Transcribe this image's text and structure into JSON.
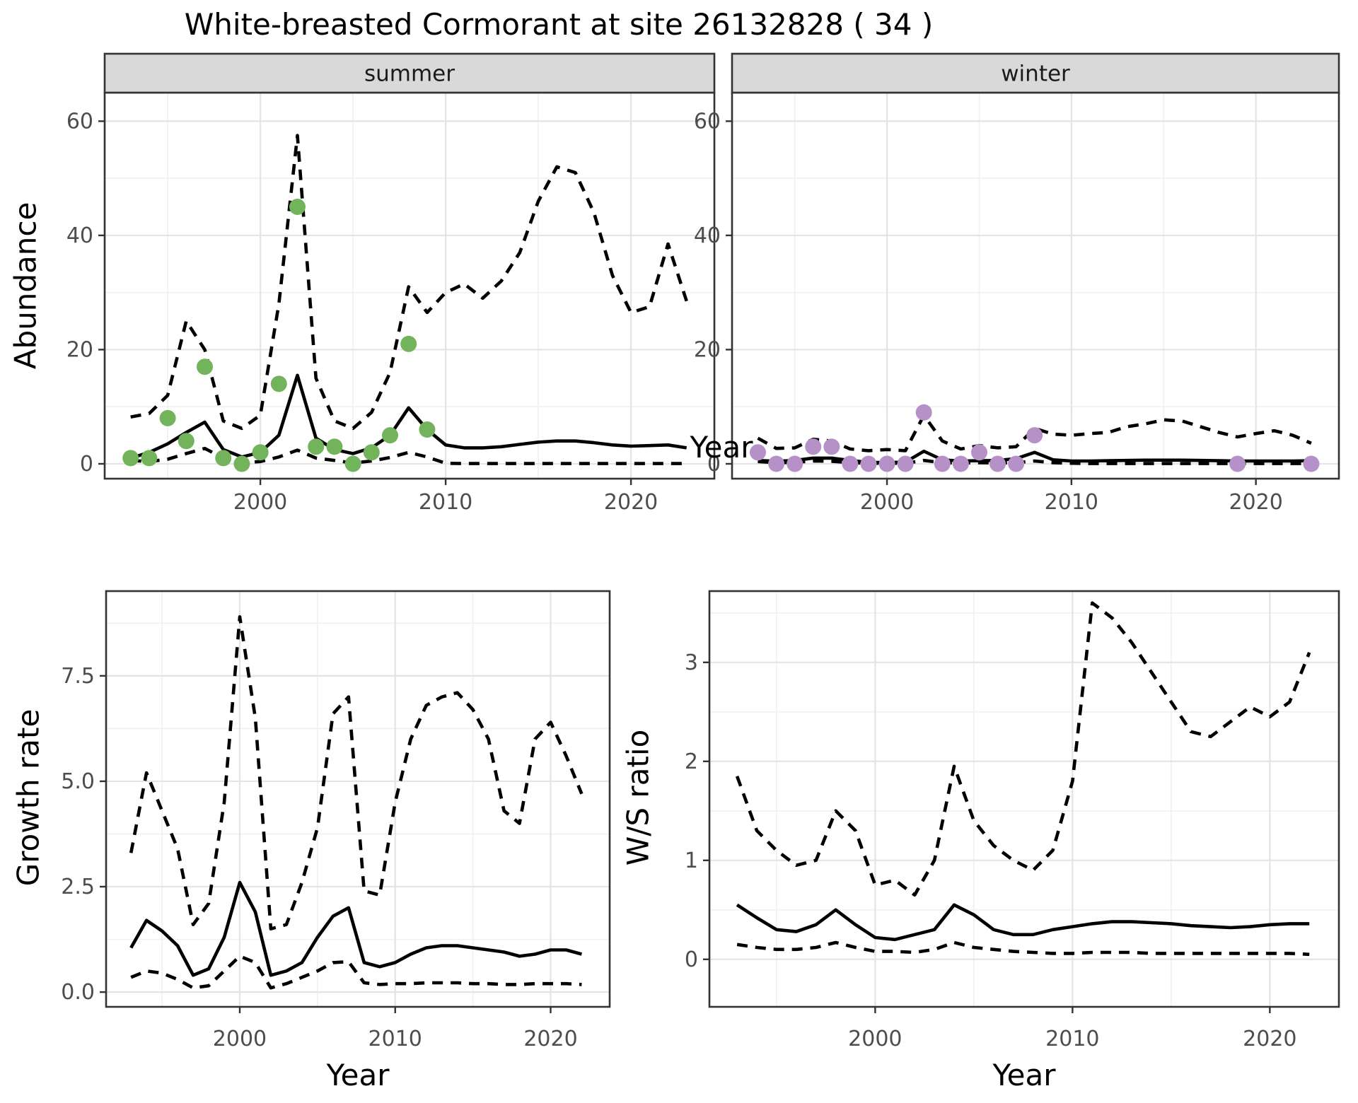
{
  "title": "White-breasted Cormorant at site 26132828 ( 34 )",
  "labels": {
    "year": "Year",
    "abundance": "Abundance",
    "growth_rate": "Growth rate",
    "ws_ratio": "W/S ratio"
  },
  "colors": {
    "summer_point": "#72B35C",
    "winter_point": "#B591C7",
    "line": "#000000",
    "strip_bg": "#D9D9D9",
    "strip_border": "#333333",
    "panel_border": "#333333",
    "grid_major": "#E4E4E4",
    "grid_minor": "#F1F1F1",
    "tick_label": "#4D4D4D",
    "tick_mark": "#333333",
    "panel_bg": "#FFFFFF"
  },
  "chart_data": [
    {
      "id": "summer",
      "type": "line",
      "facet_label": "summer",
      "xlabel": "Year",
      "ylabel": "Abundance",
      "x_ticks": [
        2000,
        2010,
        2020
      ],
      "x_minor": [
        1995,
        2005,
        2015
      ],
      "y_ticks": [
        0,
        20,
        40,
        60
      ],
      "y_tick_labels": [
        "0",
        "20",
        "40",
        "60"
      ],
      "y_minor": [
        10,
        30,
        50
      ],
      "xlim": [
        1991.6,
        2024.5
      ],
      "ylim": [
        -2.6,
        65
      ],
      "legend": "none",
      "grid": true,
      "years": [
        1993,
        1994,
        1995,
        1996,
        1997,
        1998,
        1999,
        2000,
        2001,
        2002,
        2003,
        2004,
        2005,
        2006,
        2007,
        2008,
        2009,
        2010,
        2011,
        2012,
        2013,
        2014,
        2015,
        2016,
        2017,
        2018,
        2019,
        2020,
        2021,
        2022,
        2023
      ],
      "fit": [
        1.0,
        2.0,
        3.5,
        5.5,
        7.3,
        2.5,
        1.2,
        2.0,
        5.0,
        15.5,
        4.5,
        2.5,
        1.8,
        2.8,
        5.0,
        9.8,
        6.0,
        3.3,
        2.8,
        2.8,
        3.0,
        3.4,
        3.8,
        4.0,
        4.0,
        3.7,
        3.3,
        3.1,
        3.2,
        3.3,
        2.8
      ],
      "upper_ci": [
        8.2,
        8.8,
        12,
        25,
        20,
        7.5,
        6.2,
        8.5,
        28,
        57.5,
        15,
        7.5,
        6.2,
        9,
        16,
        31,
        26.5,
        30,
        31.5,
        29,
        32,
        37,
        46,
        52,
        51,
        44,
        33,
        26.5,
        27.5,
        38.5,
        28.5
      ],
      "lower_ci": [
        0.6,
        0.4,
        0.8,
        1.8,
        2.7,
        1.0,
        0.2,
        0.4,
        1.2,
        2.4,
        1.0,
        0.6,
        0.15,
        0.5,
        1.1,
        2.0,
        1.2,
        0.1,
        0.05,
        0.05,
        0.05,
        0.05,
        0.05,
        0.05,
        0.05,
        0.05,
        0.05,
        0.05,
        0.05,
        0.05,
        0.05
      ],
      "observed": {
        "color": "summer_point",
        "years": [
          1993,
          1994,
          1995,
          1996,
          1997,
          1998,
          1999,
          2000,
          2001,
          2002,
          2003,
          2004,
          2005,
          2006,
          2007,
          2008,
          2009
        ],
        "values": [
          1,
          1,
          8,
          4,
          17,
          1,
          0,
          2,
          14,
          45,
          3,
          3,
          0,
          2,
          5,
          21,
          6
        ]
      }
    },
    {
      "id": "winter",
      "type": "line",
      "facet_label": "winter",
      "xlabel": "Year",
      "ylabel": "Abundance",
      "x_ticks": [
        2000,
        2010,
        2020
      ],
      "x_minor": [
        1995,
        2005,
        2015
      ],
      "y_ticks": [
        0,
        20,
        40,
        60
      ],
      "y_tick_labels": [
        "0",
        "20",
        "40",
        "60"
      ],
      "y_minor": [
        10,
        30,
        50
      ],
      "xlim": [
        1991.6,
        2024.5
      ],
      "ylim": [
        -2.6,
        65
      ],
      "legend": "none",
      "grid": true,
      "years": [
        1993,
        1994,
        1995,
        1996,
        1997,
        1998,
        1999,
        2000,
        2001,
        2002,
        2003,
        2004,
        2005,
        2006,
        2007,
        2008,
        2009,
        2010,
        2011,
        2012,
        2013,
        2014,
        2015,
        2016,
        2017,
        2018,
        2019,
        2020,
        2021,
        2022,
        2023
      ],
      "fit": [
        0.6,
        0.45,
        0.6,
        1.0,
        1.0,
        0.6,
        0.25,
        0.25,
        0.3,
        2.2,
        0.7,
        0.5,
        0.55,
        0.6,
        0.9,
        2.0,
        0.7,
        0.5,
        0.5,
        0.55,
        0.6,
        0.65,
        0.65,
        0.65,
        0.6,
        0.55,
        0.5,
        0.5,
        0.5,
        0.5,
        0.55
      ],
      "upper_ci": [
        4.5,
        2.7,
        2.8,
        4.3,
        4.0,
        2.6,
        2.3,
        2.5,
        2.3,
        8.5,
        4.0,
        2.6,
        3.2,
        2.8,
        3.0,
        6.2,
        5.2,
        5.0,
        5.3,
        5.5,
        6.5,
        7.0,
        7.7,
        7.5,
        6.5,
        5.5,
        4.7,
        5.3,
        5.8,
        5.0,
        3.6
      ],
      "lower_ci": [
        0.4,
        0.2,
        0.25,
        0.5,
        0.45,
        0.2,
        0.1,
        0.1,
        0.1,
        0.6,
        0.2,
        0.15,
        0.2,
        0.15,
        0.2,
        0.5,
        0.2,
        0.1,
        0.05,
        0.05,
        0.05,
        0.05,
        0.05,
        0.05,
        0.05,
        0.05,
        0.05,
        0.05,
        0.05,
        0.05,
        0.05
      ],
      "observed": {
        "color": "winter_point",
        "years": [
          1993,
          1994,
          1995,
          1996,
          1997,
          1998,
          1999,
          2000,
          2001,
          2002,
          2003,
          2004,
          2005,
          2006,
          2007,
          2008,
          2019,
          2023
        ],
        "values": [
          2,
          0,
          0,
          3,
          3,
          0,
          0,
          0,
          0,
          9,
          0,
          0,
          2,
          0,
          0,
          5,
          0,
          0
        ]
      }
    },
    {
      "id": "growth",
      "type": "line",
      "facet_label": null,
      "xlabel": "Year",
      "ylabel": "Growth rate",
      "x_ticks": [
        2000,
        2010,
        2020
      ],
      "x_minor": [
        1995,
        2005,
        2015
      ],
      "y_ticks": [
        0,
        2.5,
        5,
        7.5
      ],
      "y_tick_labels": [
        "0.0",
        "2.5",
        "5.0",
        "7.5"
      ],
      "y_minor": [
        1.25,
        3.75,
        6.25,
        8.75
      ],
      "xlim": [
        1991.4,
        2023.8
      ],
      "ylim": [
        -0.35,
        9.51
      ],
      "legend": "none",
      "grid": true,
      "years": [
        1993,
        1994,
        1995,
        1996,
        1997,
        1998,
        1999,
        2000,
        2001,
        2002,
        2003,
        2004,
        2005,
        2006,
        2007,
        2008,
        2009,
        2010,
        2011,
        2012,
        2013,
        2014,
        2015,
        2016,
        2017,
        2018,
        2019,
        2020,
        2021,
        2022
      ],
      "fit": [
        1.05,
        1.7,
        1.45,
        1.1,
        0.4,
        0.55,
        1.3,
        2.6,
        1.9,
        0.4,
        0.5,
        0.7,
        1.3,
        1.8,
        2.0,
        0.7,
        0.6,
        0.7,
        0.9,
        1.05,
        1.1,
        1.1,
        1.05,
        1.0,
        0.95,
        0.85,
        0.9,
        1.0,
        1.0,
        0.9
      ],
      "upper_ci": [
        3.3,
        5.2,
        4.3,
        3.4,
        1.6,
        2.1,
        4.5,
        8.9,
        6.5,
        1.5,
        1.6,
        2.6,
        3.9,
        6.6,
        7.0,
        2.4,
        2.3,
        4.5,
        6.0,
        6.8,
        7.0,
        7.1,
        6.7,
        6.0,
        4.3,
        4.0,
        6.0,
        6.4,
        5.6,
        4.7
      ],
      "lower_ci": [
        0.35,
        0.5,
        0.45,
        0.3,
        0.1,
        0.15,
        0.5,
        0.85,
        0.7,
        0.1,
        0.2,
        0.35,
        0.5,
        0.7,
        0.72,
        0.22,
        0.18,
        0.2,
        0.2,
        0.22,
        0.22,
        0.22,
        0.2,
        0.2,
        0.18,
        0.18,
        0.2,
        0.2,
        0.2,
        0.18
      ]
    },
    {
      "id": "ws",
      "type": "line",
      "facet_label": null,
      "xlabel": "Year",
      "ylabel": "W/S ratio",
      "x_ticks": [
        2000,
        2010,
        2020
      ],
      "x_minor": [
        1995,
        2005,
        2015
      ],
      "y_ticks": [
        0,
        1,
        2,
        3
      ],
      "y_tick_labels": [
        "0",
        "1",
        "2",
        "3"
      ],
      "y_minor": [
        0.5,
        1.5,
        2.5,
        3.5
      ],
      "xlim": [
        1991.6,
        2023.5
      ],
      "ylim": [
        -0.48,
        3.72
      ],
      "legend": "none",
      "grid": true,
      "years": [
        1993,
        1994,
        1995,
        1996,
        1997,
        1998,
        1999,
        2000,
        2001,
        2002,
        2003,
        2004,
        2005,
        2006,
        2007,
        2008,
        2009,
        2010,
        2011,
        2012,
        2013,
        2014,
        2015,
        2016,
        2017,
        2018,
        2019,
        2020,
        2021,
        2022
      ],
      "fit": [
        0.55,
        0.42,
        0.3,
        0.28,
        0.35,
        0.5,
        0.35,
        0.22,
        0.2,
        0.25,
        0.3,
        0.55,
        0.45,
        0.3,
        0.25,
        0.25,
        0.3,
        0.33,
        0.36,
        0.38,
        0.38,
        0.37,
        0.36,
        0.34,
        0.33,
        0.32,
        0.33,
        0.35,
        0.36,
        0.36
      ],
      "upper_ci": [
        1.85,
        1.3,
        1.1,
        0.95,
        1.0,
        1.5,
        1.3,
        0.75,
        0.8,
        0.65,
        1.0,
        1.95,
        1.4,
        1.15,
        1.0,
        0.9,
        1.1,
        1.8,
        3.6,
        3.45,
        3.2,
        2.9,
        2.6,
        2.3,
        2.25,
        2.4,
        2.55,
        2.45,
        2.6,
        3.1
      ],
      "lower_ci": [
        0.15,
        0.12,
        0.1,
        0.1,
        0.12,
        0.17,
        0.12,
        0.08,
        0.08,
        0.07,
        0.1,
        0.17,
        0.12,
        0.1,
        0.08,
        0.07,
        0.06,
        0.06,
        0.07,
        0.07,
        0.07,
        0.06,
        0.06,
        0.06,
        0.06,
        0.06,
        0.06,
        0.06,
        0.06,
        0.05
      ]
    }
  ]
}
